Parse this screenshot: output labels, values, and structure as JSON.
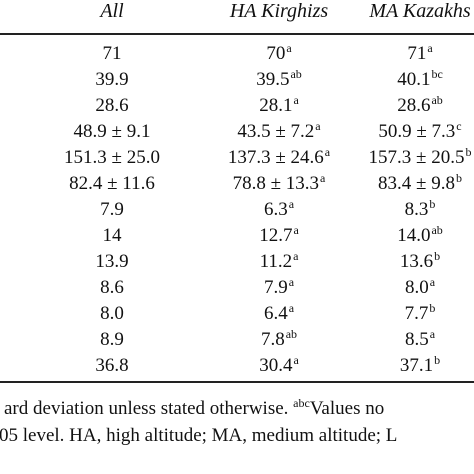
{
  "table": {
    "columns": [
      "All",
      "HA Kirghizs",
      "MA Kazakhs"
    ],
    "rows": [
      [
        {
          "v": "71",
          "s": ""
        },
        {
          "v": "70",
          "s": "a"
        },
        {
          "v": "71",
          "s": "a"
        }
      ],
      [
        {
          "v": "39.9",
          "s": ""
        },
        {
          "v": "39.5",
          "s": "ab"
        },
        {
          "v": "40.1",
          "s": "bc"
        }
      ],
      [
        {
          "v": "28.6",
          "s": ""
        },
        {
          "v": "28.1",
          "s": "a"
        },
        {
          "v": "28.6",
          "s": "ab"
        }
      ],
      [
        {
          "v": "48.9 ± 9.1",
          "s": ""
        },
        {
          "v": "43.5 ± 7.2",
          "s": "a"
        },
        {
          "v": "50.9 ± 7.3",
          "s": "c"
        }
      ],
      [
        {
          "v": "151.3 ± 25.0",
          "s": ""
        },
        {
          "v": "137.3 ± 24.6",
          "s": "a"
        },
        {
          "v": "157.3 ± 20.5",
          "s": "b"
        }
      ],
      [
        {
          "v": "82.4 ± 11.6",
          "s": ""
        },
        {
          "v": "78.8 ± 13.3",
          "s": "a"
        },
        {
          "v": "83.4 ± 9.8",
          "s": "b"
        }
      ],
      [
        {
          "v": "7.9",
          "s": ""
        },
        {
          "v": "6.3",
          "s": "a"
        },
        {
          "v": "8.3",
          "s": "b"
        }
      ],
      [
        {
          "v": "14",
          "s": ""
        },
        {
          "v": "12.7",
          "s": "a"
        },
        {
          "v": "14.0",
          "s": "ab"
        }
      ],
      [
        {
          "v": "13.9",
          "s": ""
        },
        {
          "v": "11.2",
          "s": "a"
        },
        {
          "v": "13.6",
          "s": "b"
        }
      ],
      [
        {
          "v": "8.6",
          "s": ""
        },
        {
          "v": "7.9",
          "s": "a"
        },
        {
          "v": "8.0",
          "s": "a"
        }
      ],
      [
        {
          "v": "8.0",
          "s": ""
        },
        {
          "v": "6.4",
          "s": "a"
        },
        {
          "v": "7.7",
          "s": "b"
        }
      ],
      [
        {
          "v": "8.9",
          "s": ""
        },
        {
          "v": "7.8",
          "s": "ab"
        },
        {
          "v": "8.5",
          "s": "a"
        }
      ],
      [
        {
          "v": "36.8",
          "s": ""
        },
        {
          "v": "30.4",
          "s": "a"
        },
        {
          "v": "37.1",
          "s": "b"
        }
      ]
    ]
  },
  "footnote": {
    "line1_prefix": "ard deviation unless stated otherwise. ",
    "line1_sup": "abc",
    "line1_suffix": "Values no",
    "line2": "05 level. HA, high altitude; MA, medium altitude; L"
  }
}
